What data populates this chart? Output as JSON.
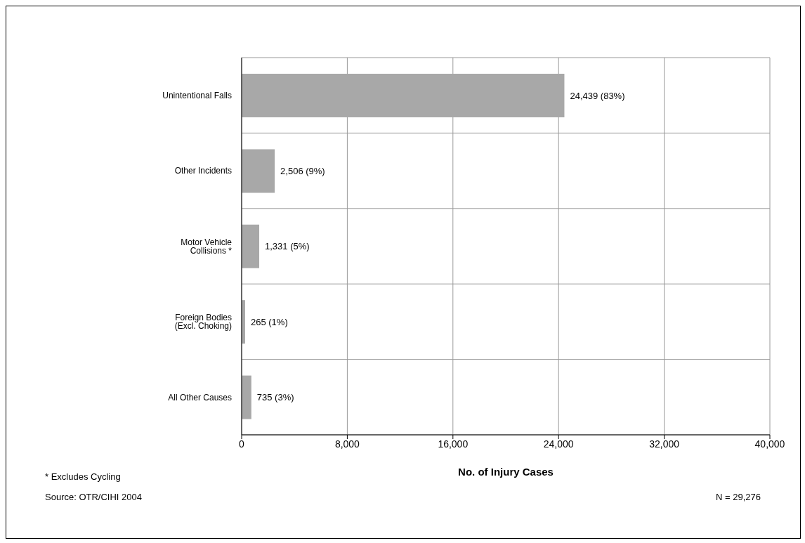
{
  "chart_data": {
    "type": "bar",
    "orientation": "horizontal",
    "categories": [
      "Unintentional Falls",
      "Other Incidents",
      "Motor Vehicle Collisions *",
      "Foreign Bodies (Excl. Choking)",
      "All Other Causes"
    ],
    "values": [
      24439,
      2506,
      1331,
      265,
      735
    ],
    "value_labels": [
      "24,439 (83%)",
      "2,506 (9%)",
      "1,331 (5%)",
      "265 (1%)",
      "735 (3%)"
    ],
    "color": "#a8a8a8",
    "xlim": [
      0,
      40000
    ],
    "xticks": [
      {
        "value": 0,
        "label": "0"
      },
      {
        "value": 8000,
        "label": "8,000"
      },
      {
        "value": 16000,
        "label": "16,000"
      },
      {
        "value": 24000,
        "label": "24,000"
      },
      {
        "value": 32000,
        "label": "32,000"
      },
      {
        "value": 40000,
        "label": "40,000"
      }
    ],
    "xlabel": "No. of Injury Cases",
    "grid": true,
    "annotations": [
      "* Excludes Cycling",
      "Source: OTR/CIHI 2004",
      "N = 29,276"
    ]
  }
}
